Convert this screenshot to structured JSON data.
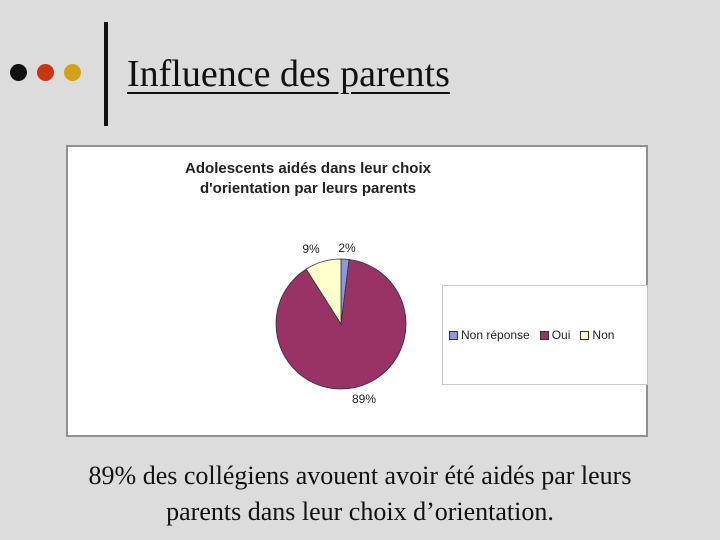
{
  "slide": {
    "title": "Influence des parents",
    "caption_line1": "89% des collégiens avouent avoir été aidés par leurs",
    "caption_line2": "parents dans leur choix d’orientation.",
    "bullet_colors": [
      "#111111",
      "#cc3311",
      "#d4a017"
    ]
  },
  "chart_data": {
    "type": "pie",
    "title": "Adolescents aidés dans leur choix d'orientation par leurs parents",
    "slices": [
      {
        "label": "Non réponse",
        "value": 2,
        "display": "2%",
        "color": "#8b97e0"
      },
      {
        "label": "Oui",
        "value": 89,
        "display": "89%",
        "color": "#993366"
      },
      {
        "label": "Non",
        "value": 9,
        "display": "9%",
        "color": "#ffffcc"
      }
    ],
    "legend_position": "right"
  }
}
